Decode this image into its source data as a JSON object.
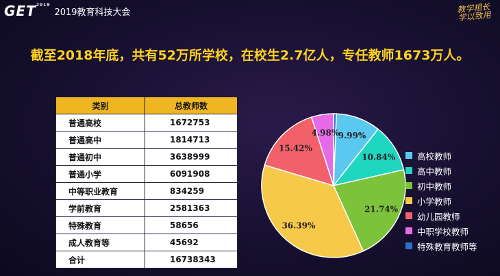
{
  "brand": {
    "logo": "GET",
    "logo_sup": "2019",
    "event": "2019教育科技大会"
  },
  "slogan": {
    "line1": "教学相长",
    "line2": "学以致用"
  },
  "headline": "截至2018年底，共有52万所学校，在校生2.7亿人，专任教师1673万人。",
  "table": {
    "headers": [
      "类别",
      "总教师数"
    ],
    "rows": [
      [
        "普通高校",
        "1672753"
      ],
      [
        "普通高中",
        "1814713"
      ],
      [
        "普通初中",
        "3638999"
      ],
      [
        "普通小学",
        "6091908"
      ],
      [
        "中等职业教育",
        "834259"
      ],
      [
        "学前教育",
        "2581363"
      ],
      [
        "特殊教育",
        "58656"
      ],
      [
        "成人教育等",
        "45692"
      ],
      [
        "合计",
        "16738343"
      ]
    ]
  },
  "chart_data": {
    "type": "pie",
    "slices": [
      {
        "label": "高校教师",
        "value": 9.99,
        "display": "9.99%",
        "color": "#5bc8f0"
      },
      {
        "label": "高中教师",
        "value": 10.84,
        "display": "10.84%",
        "color": "#1fd6c0"
      },
      {
        "label": "初中教师",
        "value": 21.74,
        "display": "21.74%",
        "color": "#7cc23a"
      },
      {
        "label": "小学教师",
        "value": 36.39,
        "display": "36.39%",
        "color": "#f7c94a"
      },
      {
        "label": "幼儿园教师",
        "value": 15.42,
        "display": "15.42%",
        "color": "#f2606a"
      },
      {
        "label": "中职学校教师",
        "value": 4.98,
        "display": "4.98%",
        "color": "#e66be8"
      },
      {
        "label": "特殊教育教师等",
        "value": 0.62,
        "display": "0.62%",
        "color": "#2e6fd0"
      }
    ],
    "legend_position": "right"
  }
}
